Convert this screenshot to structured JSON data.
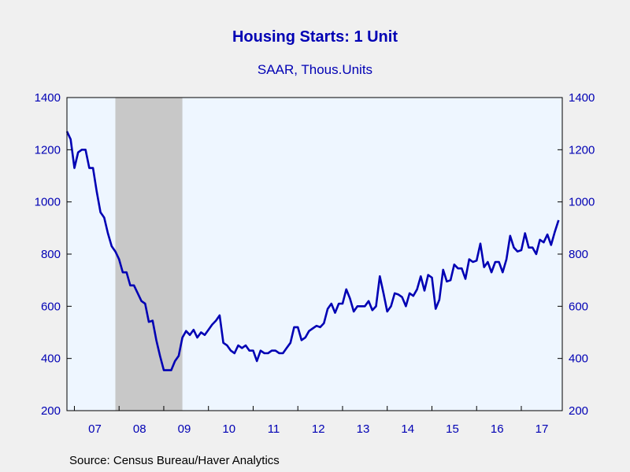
{
  "title": "Housing Starts: 1 Unit",
  "subtitle": "SAAR, Thous.Units",
  "source": "Source:  Census Bureau/Haver Analytics",
  "colors": {
    "line": "#0000b4",
    "plot_bg": "#eef6ff",
    "recession": "#c8c8c8",
    "text": "#0000b4",
    "page_bg": "#f0f0f0"
  },
  "chart_data": {
    "type": "line",
    "title": "Housing Starts: 1 Unit",
    "subtitle": "SAAR, Thous.Units",
    "xlabel": "",
    "ylabel": "",
    "ylim": [
      200,
      1400
    ],
    "yticks": [
      200,
      400,
      600,
      800,
      1000,
      1200,
      1400
    ],
    "ytick_labels_left": [
      "200",
      "400",
      "600",
      "800",
      "1000",
      "1200",
      "1400"
    ],
    "ytick_labels_right": [
      "200",
      "400",
      "600",
      "800",
      "1000",
      "1200",
      "1400"
    ],
    "xlim": [
      "2006-11",
      "2017-12"
    ],
    "xtick_labels": [
      "07",
      "08",
      "09",
      "10",
      "11",
      "12",
      "13",
      "14",
      "15",
      "16",
      "17"
    ],
    "grid": false,
    "recession_shading": [
      {
        "start": "2007-12",
        "end": "2009-06"
      }
    ],
    "series": [
      {
        "start": "2006-11",
        "frequency": "monthly",
        "values": [
          1270,
          1240,
          1130,
          1190,
          1200,
          1200,
          1130,
          1130,
          1040,
          960,
          940,
          880,
          830,
          810,
          780,
          730,
          730,
          680,
          680,
          650,
          620,
          610,
          540,
          545,
          470,
          410,
          355,
          355,
          355,
          390,
          410,
          480,
          505,
          490,
          510,
          480,
          500,
          490,
          510,
          530,
          545,
          565,
          460,
          450,
          430,
          420,
          450,
          440,
          450,
          430,
          430,
          390,
          430,
          420,
          420,
          430,
          430,
          420,
          420,
          440,
          460,
          520,
          520,
          470,
          480,
          505,
          515,
          525,
          520,
          535,
          590,
          610,
          575,
          610,
          610,
          665,
          630,
          580,
          600,
          600,
          600,
          620,
          585,
          600,
          715,
          650,
          580,
          600,
          650,
          645,
          635,
          600,
          650,
          640,
          665,
          715,
          660,
          720,
          710,
          590,
          625,
          740,
          695,
          700,
          760,
          745,
          745,
          705,
          780,
          770,
          775,
          840,
          750,
          770,
          730,
          770,
          770,
          730,
          780,
          870,
          825,
          810,
          815,
          880,
          825,
          825,
          800,
          855,
          845,
          875,
          835,
          885,
          930
        ]
      }
    ]
  }
}
